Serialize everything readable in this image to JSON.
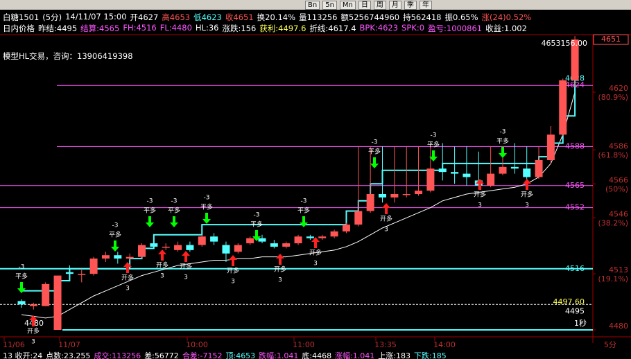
{
  "toolbar": {
    "buttons": [
      "Bn",
      "5n",
      "Mn",
      "日",
      "周",
      "月",
      "季",
      "年"
    ]
  },
  "header": {
    "line1": [
      {
        "text": "白糖1501",
        "color": "#ffffff"
      },
      {
        "text": "(5分)",
        "color": "#ffffff"
      },
      {
        "text": "14/11/07 15:00",
        "color": "#ffffff"
      },
      {
        "text": "开4627",
        "color": "#ffffff"
      },
      {
        "text": "高4653",
        "color": "#ff5555"
      },
      {
        "text": "低4623",
        "color": "#54ffff"
      },
      {
        "text": "收4651",
        "color": "#ff5555"
      },
      {
        "text": "换20.14%",
        "color": "#ffffff"
      },
      {
        "text": "量113256",
        "color": "#ffffff"
      },
      {
        "text": "额5256744960",
        "color": "#ffffff"
      },
      {
        "text": "持562418",
        "color": "#ffffff"
      },
      {
        "text": "振0.65%",
        "color": "#ffffff"
      },
      {
        "text": "涨(24)0.52%",
        "color": "#ff5555"
      }
    ],
    "line2": [
      {
        "text": "日内价格",
        "color": "#ffffff"
      },
      {
        "text": "昨结:4495",
        "color": "#ffffff"
      },
      {
        "text": "结算:4565",
        "color": "#ff55ff"
      },
      {
        "text": "FH:4516",
        "color": "#ff55ff"
      },
      {
        "text": "FL:4480",
        "color": "#ff55ff"
      },
      {
        "text": "HL:36",
        "color": "#ffffff"
      },
      {
        "text": "涨跌:156",
        "color": "#ffffff"
      },
      {
        "text": "获利:4497.6",
        "color": "#ffff55"
      },
      {
        "text": "折线:4617.4",
        "color": "#ffffff"
      },
      {
        "text": "BPK:4623",
        "color": "#ff55ff"
      },
      {
        "text": "SPK:0",
        "color": "#ff55ff"
      },
      {
        "text": "盈亏:1000861",
        "color": "#ff55ff"
      },
      {
        "text": "收益:1.002",
        "color": "#ffffff"
      }
    ],
    "note": "模型HL交易，咨询：13906419398"
  },
  "chart": {
    "price_box": 4651,
    "top_label": "4653156.00",
    "left_label": "4480",
    "period": "1秒",
    "y_ticks": [
      {
        "value": 4620,
        "pct": "(80.9%)"
      },
      {
        "value": 4586,
        "pct": "(61.8%)"
      },
      {
        "value": 4566,
        "pct": "(50%)"
      },
      {
        "value": 4546,
        "pct": "(38.2%)"
      },
      {
        "value": 4513,
        "pct": "(19.1%)"
      },
      {
        "value": 4480,
        "pct": ""
      }
    ],
    "x_labels": [
      "11/06",
      "11/07",
      "10:00",
      "11:00",
      "13:35",
      "14:00"
    ],
    "levels": [
      {
        "value": 4628,
        "color": "#54ffff",
        "line": false
      },
      {
        "value": 4624,
        "color": "#ff55ff",
        "line": true
      },
      {
        "value": 4588,
        "color": "#ff55ff",
        "line": true
      },
      {
        "value": 4565,
        "color": "#ff55ff",
        "line": true
      },
      {
        "value": 4552,
        "color": "#ff55ff",
        "line": true
      },
      {
        "value": 4516,
        "color": "#54ffff",
        "line": true
      },
      {
        "value": 4497.6,
        "label": "4497.60",
        "color": "#ffff55",
        "line": false
      },
      {
        "value": 4495,
        "color": "#ffffff",
        "line": true
      }
    ],
    "candles": [
      {
        "open": 4497,
        "high": 4498,
        "low": 4493,
        "close": 4495
      },
      {
        "open": 4494,
        "high": 4496,
        "low": 4492,
        "close": 4495
      },
      {
        "open": 4494,
        "high": 4508,
        "low": 4494,
        "close": 4507
      },
      {
        "open": 4480,
        "high": 4512,
        "low": 4480,
        "close": 4512
      },
      {
        "open": 4514,
        "high": 4518,
        "low": 4510,
        "close": 4513
      },
      {
        "open": 4513,
        "high": 4516,
        "low": 4508,
        "close": 4513
      },
      {
        "open": 4513,
        "high": 4523,
        "low": 4512,
        "close": 4522
      },
      {
        "open": 4522,
        "high": 4526,
        "low": 4520,
        "close": 4524
      },
      {
        "open": 4524,
        "high": 4526,
        "low": 4519,
        "close": 4522
      },
      {
        "open": 4522,
        "high": 4525,
        "low": 4521,
        "close": 4523
      },
      {
        "open": 4523,
        "high": 4531,
        "low": 4522,
        "close": 4530
      },
      {
        "open": 4531,
        "high": 4533,
        "low": 4528,
        "close": 4529
      },
      {
        "open": 4529,
        "high": 4531,
        "low": 4527,
        "close": 4529
      },
      {
        "open": 4527,
        "high": 4532,
        "low": 4526,
        "close": 4530
      },
      {
        "open": 4530,
        "high": 4532,
        "low": 4526,
        "close": 4527
      },
      {
        "open": 4530,
        "high": 4536,
        "low": 4529,
        "close": 4535
      },
      {
        "open": 4535,
        "high": 4537,
        "low": 4530,
        "close": 4532
      },
      {
        "open": 4530,
        "high": 4532,
        "low": 4520,
        "close": 4525
      },
      {
        "open": 4526,
        "high": 4531,
        "low": 4525,
        "close": 4530
      },
      {
        "open": 4531,
        "high": 4535,
        "low": 4530,
        "close": 4534
      },
      {
        "open": 4534,
        "high": 4536,
        "low": 4531,
        "close": 4532
      },
      {
        "open": 4531,
        "high": 4533,
        "low": 4528,
        "close": 4529
      },
      {
        "open": 4529,
        "high": 4532,
        "low": 4528,
        "close": 4531
      },
      {
        "open": 4531,
        "high": 4536,
        "low": 4530,
        "close": 4535
      },
      {
        "open": 4535,
        "high": 4536,
        "low": 4533,
        "close": 4534
      },
      {
        "open": 4534,
        "high": 4536,
        "low": 4533,
        "close": 4535
      },
      {
        "open": 4535,
        "high": 4539,
        "low": 4534,
        "close": 4538
      },
      {
        "open": 4538,
        "high": 4543,
        "low": 4537,
        "close": 4542
      },
      {
        "open": 4542,
        "high": 4588,
        "low": 4541,
        "close": 4550
      },
      {
        "open": 4550,
        "high": 4588,
        "low": 4549,
        "close": 4560
      },
      {
        "open": 4560,
        "high": 4588,
        "low": 4555,
        "close": 4558
      },
      {
        "open": 4558,
        "high": 4588,
        "low": 4555,
        "close": 4560
      },
      {
        "open": 4560,
        "high": 4588,
        "low": 4558,
        "close": 4560
      },
      {
        "open": 4560,
        "high": 4588,
        "low": 4559,
        "close": 4562
      },
      {
        "open": 4562,
        "high": 4588,
        "low": 4561,
        "close": 4575
      },
      {
        "open": 4575,
        "high": 4590,
        "low": 4568,
        "close": 4573
      },
      {
        "open": 4573,
        "high": 4588,
        "low": 4566,
        "close": 4572
      },
      {
        "open": 4572,
        "high": 4588,
        "low": 4565,
        "close": 4570
      },
      {
        "open": 4568,
        "high": 4585,
        "low": 4563,
        "close": 4565
      },
      {
        "open": 4565,
        "high": 4588,
        "low": 4564,
        "close": 4572
      },
      {
        "open": 4572,
        "high": 4588,
        "low": 4571,
        "close": 4576
      },
      {
        "open": 4576,
        "high": 4590,
        "low": 4572,
        "close": 4575
      },
      {
        "open": 4575,
        "high": 4588,
        "low": 4568,
        "close": 4570
      },
      {
        "open": 4570,
        "high": 4588,
        "low": 4569,
        "close": 4580
      },
      {
        "open": 4580,
        "high": 4600,
        "low": 4578,
        "close": 4595
      },
      {
        "open": 4595,
        "high": 4628,
        "low": 4594,
        "close": 4627
      },
      {
        "open": 4627,
        "high": 4653,
        "low": 4623,
        "close": 4651
      }
    ],
    "ma": [
      4489,
      4488,
      4487,
      4488,
      4492,
      4496,
      4500,
      4503,
      4506,
      4509,
      4512,
      4514,
      4516,
      4518,
      4519,
      4520,
      4521,
      4521,
      4522,
      4522,
      4523,
      4523,
      4523,
      4524,
      4525,
      4526,
      4527,
      4529,
      4532,
      4536,
      4540,
      4543,
      4546,
      4549,
      4552,
      4556,
      4558,
      4560,
      4561,
      4562,
      4563,
      4564,
      4566,
      4570,
      4578,
      4595,
      4620
    ],
    "step": [
      4503,
      4503,
      4503,
      4509,
      4516,
      4516,
      4516,
      4516,
      4516,
      4522,
      4528,
      4536,
      4536,
      4536,
      4536,
      4542,
      4542,
      4542,
      4542,
      4542,
      4542,
      4542,
      4542,
      4542,
      4542,
      4542,
      4542,
      4550,
      4556,
      4566,
      4574,
      4574,
      4574,
      4574,
      4574,
      4578,
      4578,
      4578,
      4578,
      4578,
      4578,
      4578,
      4578,
      4582,
      4590,
      4606,
      4628
    ],
    "close_signals": [
      {
        "label": "平多",
        "qty": -3
      },
      {
        "label": "平多",
        "qty": -3
      },
      {
        "label": "平多",
        "qty": -3
      },
      {
        "label": "平多",
        "qty": -3
      },
      {
        "label": "平多",
        "qty": -3
      },
      {
        "label": "平多",
        "qty": -3
      },
      {
        "label": "平多",
        "qty": -3
      },
      {
        "label": "平多",
        "qty": -3
      },
      {
        "label": "平多",
        "qty": -3
      },
      {
        "label": "平多",
        "qty": -3
      }
    ],
    "open_signals": [
      {
        "label": "开多",
        "qty": 3
      },
      {
        "label": "开多",
        "qty": 3
      },
      {
        "label": "开多",
        "qty": 3
      },
      {
        "label": "开多",
        "qty": 3
      },
      {
        "label": "开多",
        "qty": 3
      },
      {
        "label": "开多",
        "qty": 3
      },
      {
        "label": "开多",
        "qty": 3
      },
      {
        "label": "开多",
        "qty": 3
      },
      {
        "label": "开多",
        "qty": 3
      },
      {
        "label": "开多",
        "qty": 3
      }
    ]
  },
  "footer": {
    "segments": [
      {
        "text": "13 收开:24",
        "color": "#ffffff"
      },
      {
        "text": "点数:23.255",
        "color": "#ffffff"
      },
      {
        "text": "成交:113256",
        "color": "#ff55ff"
      },
      {
        "text": "差:56772",
        "color": "#ffffff"
      },
      {
        "text": "合差:-7152",
        "color": "#ff55ff"
      },
      {
        "text": "顶:4653",
        "color": "#54ffff"
      },
      {
        "text": "跌幅:1.041",
        "color": "#ff55ff"
      },
      {
        "text": "底:4468",
        "color": "#ffffff"
      },
      {
        "text": "涨幅:1.041",
        "color": "#ff55ff"
      },
      {
        "text": "上涨:183",
        "color": "#ffffff"
      },
      {
        "text": "下跌:185",
        "color": "#54ffff"
      }
    ],
    "period": "5分"
  }
}
